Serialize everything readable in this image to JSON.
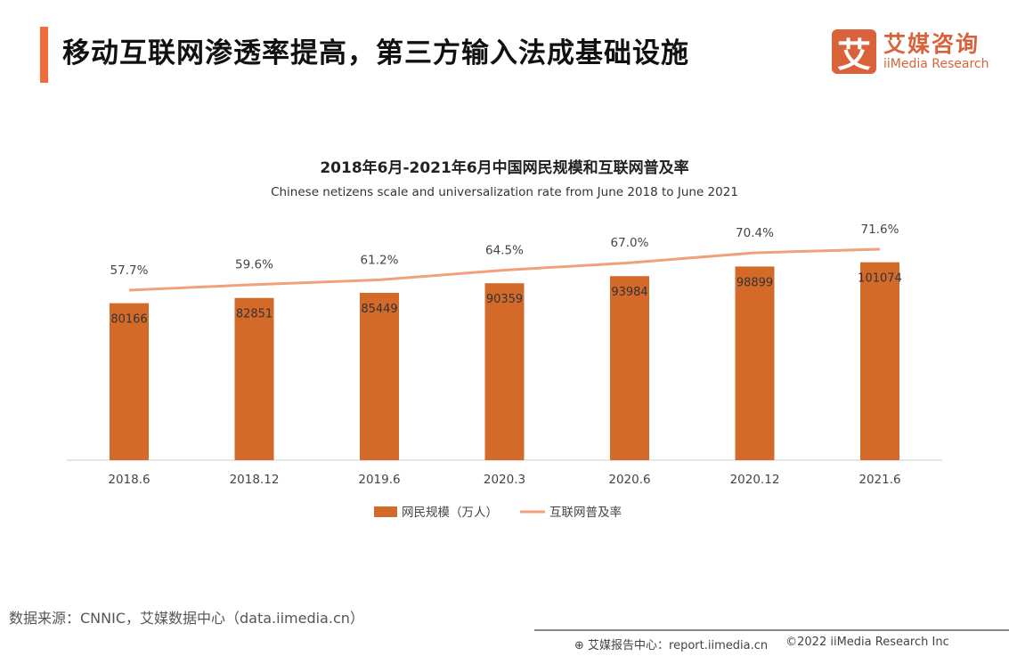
{
  "header": {
    "title": "移动互联网渗透率提高，第三方输入法成基础设施",
    "accent_color": "#f26b3a"
  },
  "logo": {
    "mark": "艾",
    "cn": "艾媒咨询",
    "en": "iiMedia Research",
    "color": "#d9623a"
  },
  "chart_data": {
    "type": "bar+line",
    "title": "2018年6月-2021年6月中国网民规模和互联网普及率",
    "subtitle": "Chinese netizens scale and universalization rate from June 2018 to June 2021",
    "categories": [
      "2018.6",
      "2018.12",
      "2019.6",
      "2020.3",
      "2020.6",
      "2020.12",
      "2021.6"
    ],
    "series": [
      {
        "name": "网民规模（万人）",
        "type": "bar",
        "color": "#d46a2a",
        "values": [
          80166,
          82851,
          85449,
          90359,
          93984,
          98899,
          101074
        ]
      },
      {
        "name": "互联网普及率",
        "type": "line",
        "color": "#f0a07a",
        "values": [
          57.7,
          59.6,
          61.2,
          64.5,
          67.0,
          70.4,
          71.6
        ],
        "labels": [
          "57.7%",
          "59.6%",
          "61.2%",
          "64.5%",
          "67.0%",
          "70.4%",
          "71.6%"
        ]
      }
    ],
    "legend": "bottom",
    "grid": false
  },
  "footer": {
    "source": "数据来源：CNNIC，艾媒数据中心（data.iimedia.cn）",
    "report": "艾媒报告中心：report.iimedia.cn",
    "copyright": "©2022 iiMedia Research Inc"
  }
}
